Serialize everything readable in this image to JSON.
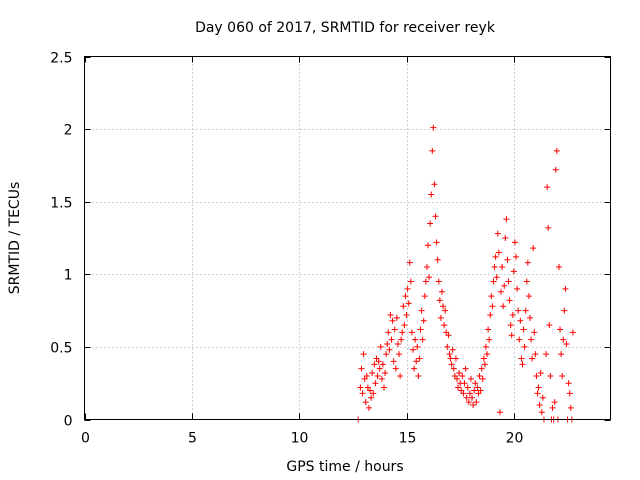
{
  "chart_data": {
    "type": "scatter",
    "title": "Day 060 of 2017, SRMTID for receiver reyk",
    "xlabel": "GPS time / hours",
    "ylabel": "SRMTID / TECUs",
    "xlim": [
      0,
      24.5
    ],
    "ylim": [
      0,
      2.5
    ],
    "xticks": [
      0,
      5,
      10,
      15,
      20
    ],
    "xtick_labels": [
      "0",
      "5",
      "10",
      "15",
      "20"
    ],
    "yticks": [
      0,
      0.5,
      1,
      1.5,
      2,
      2.5
    ],
    "ytick_labels": [
      "0",
      "0.5",
      "1",
      "1.5",
      "2",
      "2.5"
    ],
    "grid": true,
    "marker": "+",
    "marker_color": "#ff0000",
    "series": [
      {
        "name": "SRMTID",
        "points": [
          [
            12.75,
            0.0
          ],
          [
            12.85,
            0.22
          ],
          [
            12.9,
            0.35
          ],
          [
            12.95,
            0.18
          ],
          [
            13.0,
            0.45
          ],
          [
            13.05,
            0.28
          ],
          [
            13.1,
            0.12
          ],
          [
            13.15,
            0.3
          ],
          [
            13.2,
            0.22
          ],
          [
            13.25,
            0.08
          ],
          [
            13.3,
            0.2
          ],
          [
            13.35,
            0.15
          ],
          [
            13.4,
            0.32
          ],
          [
            13.45,
            0.18
          ],
          [
            13.5,
            0.38
          ],
          [
            13.55,
            0.25
          ],
          [
            13.6,
            0.42
          ],
          [
            13.65,
            0.3
          ],
          [
            13.7,
            0.4
          ],
          [
            13.75,
            0.35
          ],
          [
            13.8,
            0.5
          ],
          [
            13.85,
            0.28
          ],
          [
            13.9,
            0.38
          ],
          [
            13.95,
            0.22
          ],
          [
            14.0,
            0.32
          ],
          [
            14.05,
            0.45
          ],
          [
            14.1,
            0.52
          ],
          [
            14.15,
            0.6
          ],
          [
            14.2,
            0.48
          ],
          [
            14.25,
            0.72
          ],
          [
            14.3,
            0.55
          ],
          [
            14.35,
            0.68
          ],
          [
            14.4,
            0.4
          ],
          [
            14.45,
            0.62
          ],
          [
            14.5,
            0.35
          ],
          [
            14.55,
            0.7
          ],
          [
            14.6,
            0.52
          ],
          [
            14.65,
            0.45
          ],
          [
            14.7,
            0.3
          ],
          [
            14.75,
            0.55
          ],
          [
            14.8,
            0.6
          ],
          [
            14.85,
            0.78
          ],
          [
            14.9,
            0.65
          ],
          [
            14.95,
            0.85
          ],
          [
            15.0,
            0.72
          ],
          [
            15.05,
            0.9
          ],
          [
            15.1,
            0.8
          ],
          [
            15.15,
            1.08
          ],
          [
            15.2,
            0.95
          ],
          [
            15.25,
            0.6
          ],
          [
            15.3,
            0.48
          ],
          [
            15.35,
            0.35
          ],
          [
            15.4,
            0.55
          ],
          [
            15.45,
            0.4
          ],
          [
            15.5,
            0.5
          ],
          [
            15.55,
            0.3
          ],
          [
            15.6,
            0.42
          ],
          [
            15.65,
            0.62
          ],
          [
            15.7,
            0.75
          ],
          [
            15.75,
            0.55
          ],
          [
            15.8,
            0.68
          ],
          [
            15.85,
            0.85
          ],
          [
            15.9,
            0.95
          ],
          [
            15.95,
            1.05
          ],
          [
            16.0,
            1.2
          ],
          [
            16.05,
            0.98
          ],
          [
            16.1,
            1.35
          ],
          [
            16.15,
            1.55
          ],
          [
            16.2,
            1.85
          ],
          [
            16.25,
            2.01
          ],
          [
            16.3,
            1.62
          ],
          [
            16.35,
            1.4
          ],
          [
            16.4,
            1.22
          ],
          [
            16.45,
            1.1
          ],
          [
            16.5,
            0.95
          ],
          [
            16.55,
            0.82
          ],
          [
            16.6,
            0.7
          ],
          [
            16.65,
            0.88
          ],
          [
            16.7,
            0.78
          ],
          [
            16.75,
            0.65
          ],
          [
            16.8,
            0.75
          ],
          [
            16.85,
            0.6
          ],
          [
            16.9,
            0.5
          ],
          [
            16.95,
            0.58
          ],
          [
            17.0,
            0.45
          ],
          [
            17.05,
            0.42
          ],
          [
            17.1,
            0.38
          ],
          [
            17.15,
            0.48
          ],
          [
            17.2,
            0.35
          ],
          [
            17.25,
            0.3
          ],
          [
            17.3,
            0.42
          ],
          [
            17.35,
            0.28
          ],
          [
            17.4,
            0.22
          ],
          [
            17.45,
            0.32
          ],
          [
            17.5,
            0.25
          ],
          [
            17.55,
            0.2
          ],
          [
            17.6,
            0.3
          ],
          [
            17.65,
            0.18
          ],
          [
            17.7,
            0.25
          ],
          [
            17.75,
            0.35
          ],
          [
            17.8,
            0.15
          ],
          [
            17.85,
            0.22
          ],
          [
            17.9,
            0.12
          ],
          [
            17.95,
            0.18
          ],
          [
            18.0,
            0.28
          ],
          [
            18.05,
            0.15
          ],
          [
            18.1,
            0.1
          ],
          [
            18.15,
            0.2
          ],
          [
            18.2,
            0.25
          ],
          [
            18.25,
            0.12
          ],
          [
            18.3,
            0.22
          ],
          [
            18.35,
            0.18
          ],
          [
            18.4,
            0.3
          ],
          [
            18.45,
            0.2
          ],
          [
            18.5,
            0.35
          ],
          [
            18.55,
            0.28
          ],
          [
            18.6,
            0.42
          ],
          [
            18.65,
            0.38
          ],
          [
            18.7,
            0.5
          ],
          [
            18.75,
            0.45
          ],
          [
            18.8,
            0.62
          ],
          [
            18.85,
            0.55
          ],
          [
            18.9,
            0.72
          ],
          [
            18.95,
            0.85
          ],
          [
            19.0,
            0.78
          ],
          [
            19.05,
            0.95
          ],
          [
            19.1,
            1.05
          ],
          [
            19.15,
            1.12
          ],
          [
            19.2,
            0.98
          ],
          [
            19.25,
            1.28
          ],
          [
            19.3,
            1.15
          ],
          [
            19.35,
            0.05
          ],
          [
            19.4,
            0.88
          ],
          [
            19.45,
            1.05
          ],
          [
            19.5,
            0.78
          ],
          [
            19.55,
            0.92
          ],
          [
            19.6,
            1.25
          ],
          [
            19.65,
            1.38
          ],
          [
            19.7,
            1.1
          ],
          [
            19.75,
            0.95
          ],
          [
            19.8,
            0.82
          ],
          [
            19.85,
            0.65
          ],
          [
            19.9,
            0.58
          ],
          [
            19.95,
            0.72
          ],
          [
            20.0,
            1.02
          ],
          [
            20.05,
            1.22
          ],
          [
            20.1,
            1.12
          ],
          [
            20.15,
            0.9
          ],
          [
            20.2,
            0.75
          ],
          [
            20.25,
            0.55
          ],
          [
            20.3,
            0.68
          ],
          [
            20.35,
            0.42
          ],
          [
            20.4,
            0.38
          ],
          [
            20.45,
            0.62
          ],
          [
            20.5,
            0.5
          ],
          [
            20.55,
            0.75
          ],
          [
            20.6,
            0.95
          ],
          [
            20.65,
            1.08
          ],
          [
            20.7,
            0.85
          ],
          [
            20.75,
            0.7
          ],
          [
            20.8,
            0.55
          ],
          [
            20.85,
            0.42
          ],
          [
            20.9,
            1.18
          ],
          [
            20.95,
            0.6
          ],
          [
            21.0,
            0.45
          ],
          [
            21.05,
            0.3
          ],
          [
            21.1,
            0.18
          ],
          [
            21.15,
            0.22
          ],
          [
            21.2,
            0.1
          ],
          [
            21.25,
            0.32
          ],
          [
            21.3,
            0.05
          ],
          [
            21.35,
            0.15
          ],
          [
            21.4,
            0.0
          ],
          [
            21.5,
            0.45
          ],
          [
            21.55,
            1.6
          ],
          [
            21.6,
            1.32
          ],
          [
            21.65,
            0.65
          ],
          [
            21.7,
            0.3
          ],
          [
            21.75,
            0.0
          ],
          [
            21.8,
            0.08
          ],
          [
            21.85,
            0.0
          ],
          [
            21.9,
            0.12
          ],
          [
            21.95,
            1.72
          ],
          [
            22.0,
            1.85
          ],
          [
            22.05,
            0.0
          ],
          [
            22.1,
            1.05
          ],
          [
            22.15,
            0.62
          ],
          [
            22.2,
            0.45
          ],
          [
            22.25,
            0.3
          ],
          [
            22.3,
            0.55
          ],
          [
            22.35,
            0.75
          ],
          [
            22.4,
            0.9
          ],
          [
            22.45,
            0.52
          ],
          [
            22.5,
            0.0
          ],
          [
            22.55,
            0.25
          ],
          [
            22.6,
            0.18
          ],
          [
            22.65,
            0.08
          ],
          [
            22.7,
            0.0
          ],
          [
            22.75,
            0.6
          ]
        ]
      }
    ]
  }
}
